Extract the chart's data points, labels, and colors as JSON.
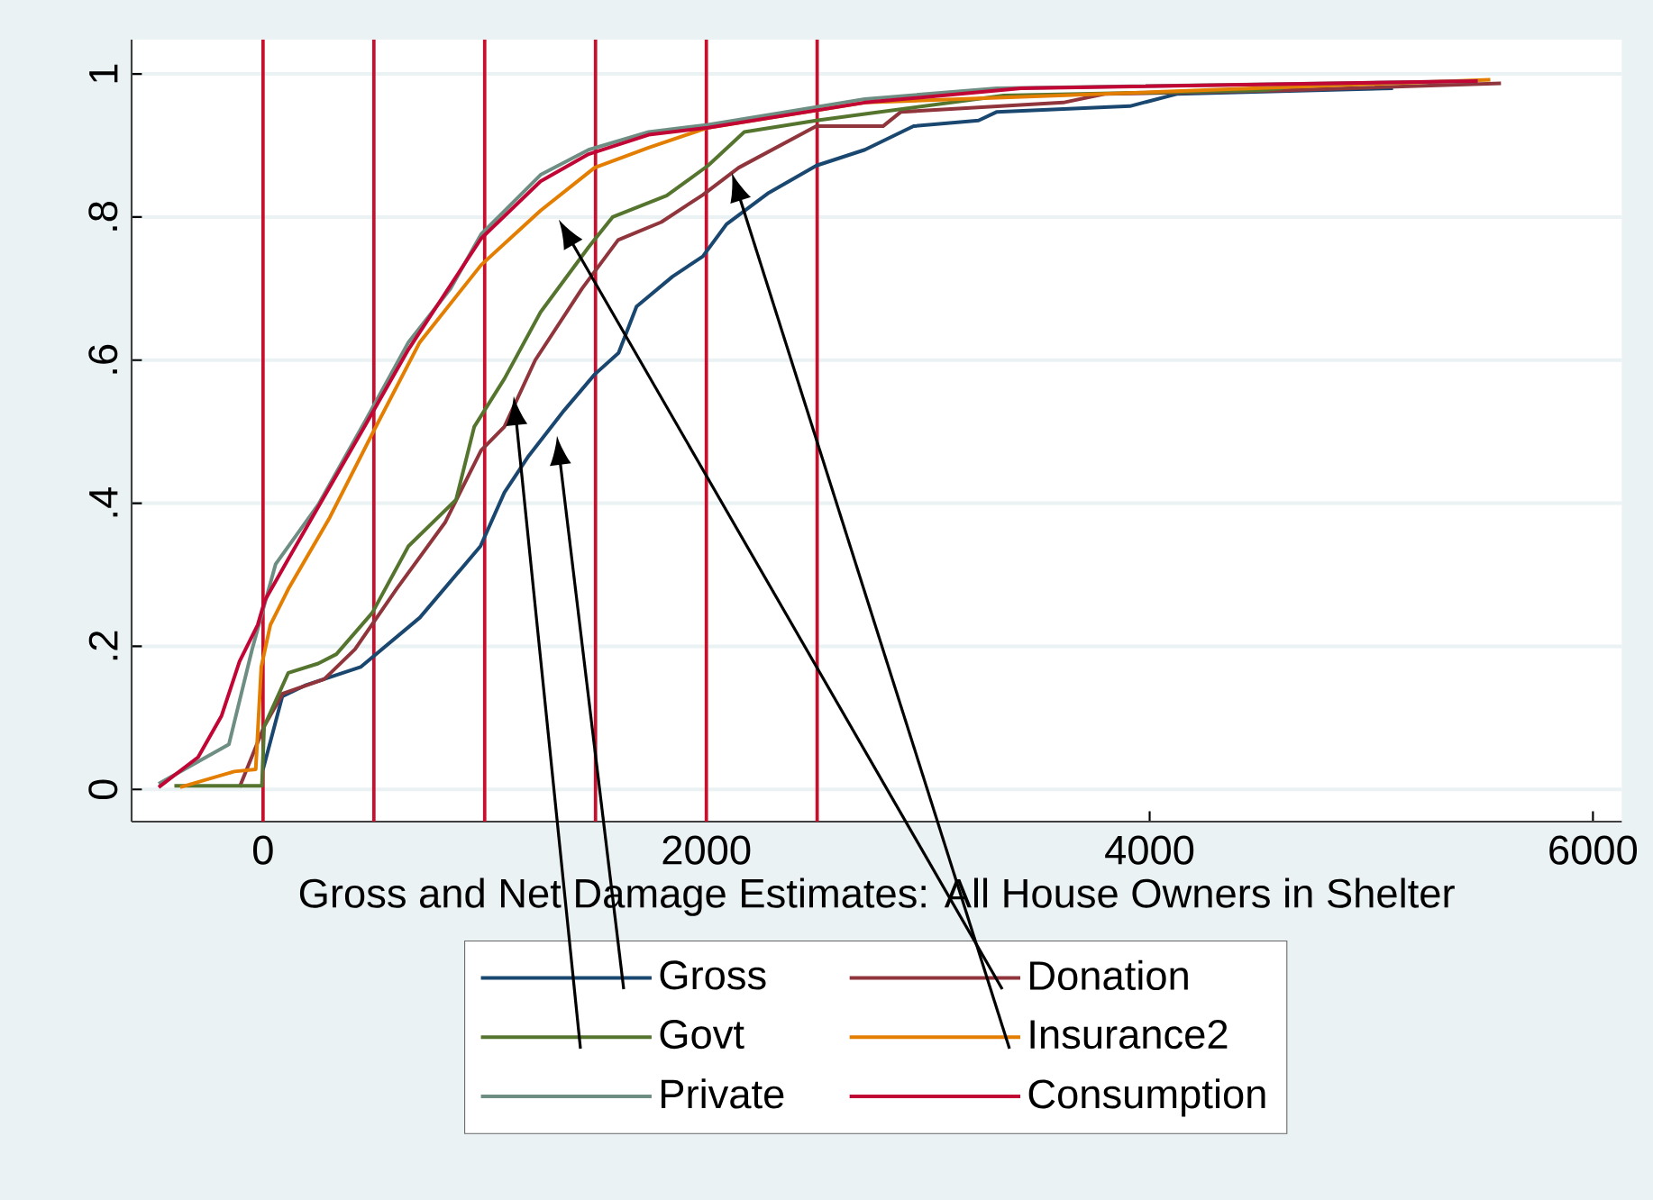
{
  "chart_data": {
    "type": "line",
    "xlabel": "Gross and Net Damage Estimates: All House Owners in Shelter",
    "xlim": [
      -593,
      6130
    ],
    "ylim": [
      -0.045,
      1.048
    ],
    "xticks": [
      0,
      2000,
      4000,
      6000
    ],
    "yticks": [
      0,
      {
        "value": 0.2,
        "label": ".2"
      },
      {
        "value": 0.4,
        "label": ".4"
      },
      {
        "value": 0.6,
        "label": ".6"
      },
      {
        "value": 0.8,
        "label": ".8"
      },
      1
    ],
    "grid": "y",
    "legend": "bottom",
    "line_style": "solid",
    "ref_lines": [
      {
        "axis": "x",
        "value": 0,
        "color": "#c8102e"
      },
      {
        "axis": "x",
        "value": 500,
        "color": "#c8102e"
      },
      {
        "axis": "x",
        "value": 1000,
        "color": "#c8102e"
      },
      {
        "axis": "x",
        "value": 1500,
        "color": "#c8102e"
      },
      {
        "axis": "x",
        "value": 2000,
        "color": "#c8102e"
      },
      {
        "axis": "x",
        "value": 2500,
        "color": "#c8102e"
      }
    ],
    "series": [
      {
        "name": "Gross",
        "color": "#1a476f",
        "x": [
          0,
          87,
          195,
          440,
          707,
          981,
          1089,
          1198,
          1359,
          1496,
          1604,
          1685,
          1848,
          1984,
          2091,
          2282,
          2497,
          2715,
          2935,
          3228,
          3311,
          3911,
          4122,
          5098
        ],
        "values": [
          0.028,
          0.13,
          0.146,
          0.171,
          0.24,
          0.34,
          0.415,
          0.466,
          0.53,
          0.58,
          0.61,
          0.675,
          0.717,
          0.745,
          0.79,
          0.834,
          0.872,
          0.894,
          0.927,
          0.935,
          0.947,
          0.955,
          0.972,
          0.98
        ]
      },
      {
        "name": "Donation",
        "color": "#90353b",
        "x": [
          -106,
          5,
          89,
          276,
          415,
          602,
          821,
          984,
          1089,
          1228,
          1439,
          1602,
          1797,
          1984,
          2146,
          2496,
          2797,
          2878,
          3610,
          3797,
          4610,
          5585
        ],
        "values": [
          0.003,
          0.088,
          0.134,
          0.154,
          0.196,
          0.28,
          0.373,
          0.474,
          0.507,
          0.6,
          0.7,
          0.768,
          0.793,
          0.831,
          0.869,
          0.927,
          0.927,
          0.947,
          0.96,
          0.972,
          0.977,
          0.987
        ]
      },
      {
        "name": "Govt",
        "color": "#55752f",
        "x": [
          -400,
          -5,
          5,
          114,
          249,
          331,
          493,
          656,
          871,
          953,
          1089,
          1252,
          1469,
          1577,
          1821,
          2008,
          2171,
          2496,
          2715,
          3341,
          4504,
          4600
        ],
        "values": [
          0.005,
          0.005,
          0.088,
          0.163,
          0.176,
          0.189,
          0.247,
          0.34,
          0.405,
          0.507,
          0.574,
          0.667,
          0.758,
          0.8,
          0.83,
          0.872,
          0.919,
          0.935,
          0.944,
          0.97,
          0.977,
          0.98
        ]
      },
      {
        "name": "Insurance2",
        "color": "#e37e00",
        "x": [
          -374,
          -130,
          -33,
          -8,
          33,
          114,
          301,
          496,
          707,
          984,
          1252,
          1496,
          1740,
          2008,
          2715,
          5537
        ],
        "values": [
          0.003,
          0.025,
          0.028,
          0.171,
          0.23,
          0.28,
          0.38,
          0.499,
          0.625,
          0.733,
          0.809,
          0.869,
          0.897,
          0.925,
          0.96,
          0.992
        ]
      },
      {
        "name": "Private",
        "color": "#6e8e84",
        "x": [
          -471,
          -154,
          -49,
          57,
          249,
          463,
          656,
          846,
          984,
          1252,
          1469,
          1740,
          2008,
          2715,
          3311,
          5480
        ],
        "values": [
          0.008,
          0.063,
          0.196,
          0.315,
          0.398,
          0.516,
          0.625,
          0.7,
          0.776,
          0.859,
          0.894,
          0.919,
          0.929,
          0.965,
          0.98,
          0.99
        ]
      },
      {
        "name": "Consumption",
        "color": "#c10534",
        "x": [
          -471,
          -293,
          -187,
          -106,
          -24,
          8,
          114,
          463,
          656,
          984,
          1252,
          1469,
          1740,
          2008,
          2715,
          3420,
          5480
        ],
        "values": [
          0.003,
          0.045,
          0.103,
          0.179,
          0.23,
          0.264,
          0.322,
          0.51,
          0.615,
          0.77,
          0.85,
          0.888,
          0.915,
          0.925,
          0.96,
          0.98,
          0.99
        ]
      }
    ]
  }
}
